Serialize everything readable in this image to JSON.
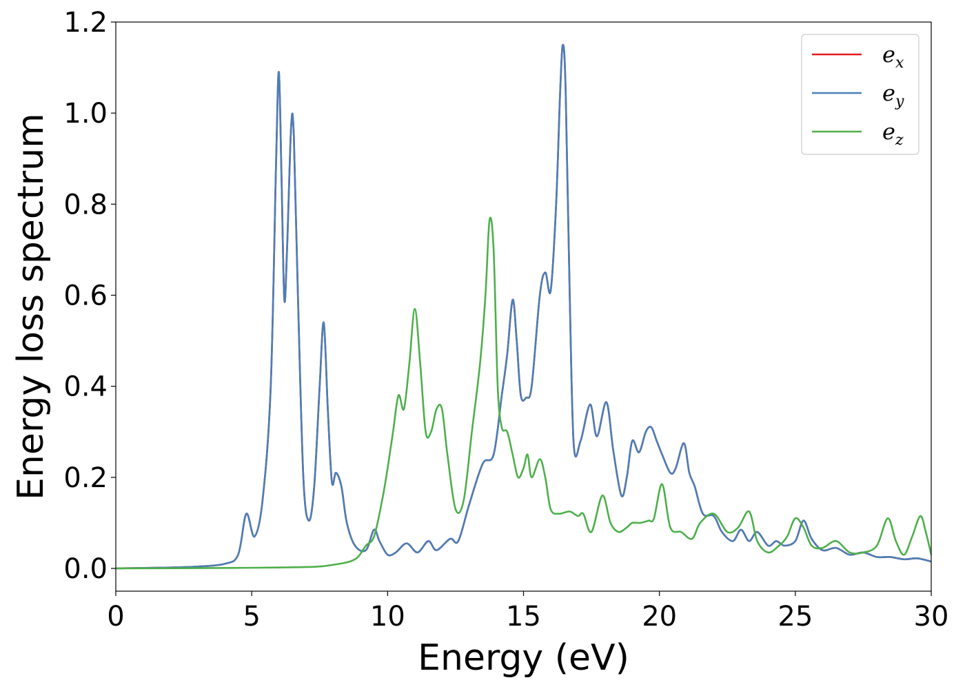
{
  "chart_data": {
    "type": "line",
    "title": "",
    "xlabel": "Energy (eV)",
    "ylabel": "Energy loss spectrum",
    "xlim": [
      0,
      30
    ],
    "ylim": [
      -0.05,
      1.2
    ],
    "x_ticks": [
      0,
      5,
      10,
      15,
      20,
      25,
      30
    ],
    "x_tick_labels": [
      "0",
      "5",
      "10",
      "15",
      "20",
      "25",
      "30"
    ],
    "y_ticks": [
      0.0,
      0.2,
      0.4,
      0.6,
      0.8,
      1.0,
      1.2
    ],
    "y_tick_labels": [
      "0.0",
      "0.2",
      "0.4",
      "0.6",
      "0.8",
      "1.0",
      "1.2"
    ],
    "grid": false,
    "legend_position": "top-right",
    "series": [
      {
        "name": "e",
        "subscript": "x",
        "color": "#e41a1c",
        "x": [
          0,
          2,
          3,
          4,
          4.5,
          4.8,
          5.1,
          5.4,
          5.7,
          5.9,
          6.0,
          6.1,
          6.2,
          6.3,
          6.45,
          6.55,
          6.7,
          6.9,
          7.1,
          7.3,
          7.5,
          7.65,
          7.8,
          7.95,
          8.1,
          8.3,
          8.5,
          8.8,
          9.2,
          9.5,
          9.7,
          10.0,
          10.3,
          10.7,
          11.1,
          11.5,
          11.8,
          12.3,
          12.6,
          13.0,
          13.5,
          13.9,
          14.2,
          14.4,
          14.6,
          14.75,
          14.9,
          15.1,
          15.3,
          15.6,
          15.8,
          16.0,
          16.2,
          16.35,
          16.45,
          16.55,
          16.7,
          16.85,
          17.1,
          17.45,
          17.7,
          18.05,
          18.3,
          18.6,
          18.8,
          19.0,
          19.25,
          19.5,
          19.7,
          19.9,
          20.1,
          20.4,
          20.6,
          20.9,
          21.1,
          21.3,
          21.6,
          22.0,
          22.3,
          22.7,
          23.0,
          23.3,
          23.6,
          24.0,
          24.3,
          24.6,
          25.0,
          25.3,
          25.6,
          26.0,
          26.5,
          27.0,
          27.5,
          28.0,
          28.5,
          29.0,
          29.5,
          30.0
        ],
        "y": [
          0.0,
          0.002,
          0.004,
          0.01,
          0.03,
          0.12,
          0.07,
          0.15,
          0.4,
          0.9,
          1.09,
          0.85,
          0.59,
          0.7,
          0.97,
          0.95,
          0.6,
          0.2,
          0.105,
          0.18,
          0.4,
          0.54,
          0.35,
          0.19,
          0.21,
          0.18,
          0.1,
          0.05,
          0.04,
          0.085,
          0.06,
          0.03,
          0.035,
          0.055,
          0.035,
          0.06,
          0.04,
          0.065,
          0.06,
          0.14,
          0.23,
          0.25,
          0.38,
          0.47,
          0.59,
          0.5,
          0.38,
          0.375,
          0.4,
          0.6,
          0.65,
          0.61,
          0.8,
          1.05,
          1.15,
          1.05,
          0.6,
          0.27,
          0.28,
          0.36,
          0.29,
          0.365,
          0.26,
          0.16,
          0.2,
          0.28,
          0.255,
          0.3,
          0.31,
          0.28,
          0.25,
          0.21,
          0.22,
          0.275,
          0.21,
          0.18,
          0.12,
          0.115,
          0.08,
          0.06,
          0.085,
          0.06,
          0.08,
          0.05,
          0.06,
          0.05,
          0.06,
          0.105,
          0.065,
          0.04,
          0.045,
          0.03,
          0.035,
          0.025,
          0.025,
          0.02,
          0.022,
          0.015
        ]
      },
      {
        "name": "e",
        "subscript": "y",
        "color": "#4a7fb8",
        "x": [
          0,
          2,
          3,
          4,
          4.5,
          4.8,
          5.1,
          5.4,
          5.7,
          5.9,
          6.0,
          6.1,
          6.2,
          6.3,
          6.45,
          6.55,
          6.7,
          6.9,
          7.1,
          7.3,
          7.5,
          7.65,
          7.8,
          7.95,
          8.1,
          8.3,
          8.5,
          8.8,
          9.2,
          9.5,
          9.7,
          10.0,
          10.3,
          10.7,
          11.1,
          11.5,
          11.8,
          12.3,
          12.6,
          13.0,
          13.5,
          13.9,
          14.2,
          14.4,
          14.6,
          14.75,
          14.9,
          15.1,
          15.3,
          15.6,
          15.8,
          16.0,
          16.2,
          16.35,
          16.45,
          16.55,
          16.7,
          16.85,
          17.1,
          17.45,
          17.7,
          18.05,
          18.3,
          18.6,
          18.8,
          19.0,
          19.25,
          19.5,
          19.7,
          19.9,
          20.1,
          20.4,
          20.6,
          20.9,
          21.1,
          21.3,
          21.6,
          22.0,
          22.3,
          22.7,
          23.0,
          23.3,
          23.6,
          24.0,
          24.3,
          24.6,
          25.0,
          25.3,
          25.6,
          26.0,
          26.5,
          27.0,
          27.5,
          28.0,
          28.5,
          29.0,
          29.5,
          30.0
        ],
        "y": [
          0.0,
          0.002,
          0.004,
          0.01,
          0.03,
          0.12,
          0.07,
          0.15,
          0.4,
          0.9,
          1.09,
          0.85,
          0.59,
          0.7,
          0.97,
          0.95,
          0.6,
          0.2,
          0.105,
          0.18,
          0.4,
          0.54,
          0.35,
          0.19,
          0.21,
          0.18,
          0.1,
          0.05,
          0.04,
          0.085,
          0.06,
          0.03,
          0.035,
          0.055,
          0.035,
          0.06,
          0.04,
          0.065,
          0.06,
          0.14,
          0.23,
          0.25,
          0.38,
          0.47,
          0.59,
          0.5,
          0.38,
          0.375,
          0.4,
          0.6,
          0.65,
          0.61,
          0.8,
          1.05,
          1.15,
          1.05,
          0.6,
          0.27,
          0.28,
          0.36,
          0.29,
          0.365,
          0.26,
          0.16,
          0.2,
          0.28,
          0.255,
          0.3,
          0.31,
          0.28,
          0.25,
          0.21,
          0.22,
          0.275,
          0.21,
          0.18,
          0.12,
          0.115,
          0.08,
          0.06,
          0.085,
          0.06,
          0.08,
          0.05,
          0.06,
          0.05,
          0.06,
          0.105,
          0.065,
          0.04,
          0.045,
          0.03,
          0.035,
          0.025,
          0.025,
          0.02,
          0.022,
          0.015
        ]
      },
      {
        "name": "e",
        "subscript": "z",
        "color": "#4daf4a",
        "x": [
          0,
          4,
          7,
          8,
          8.8,
          9.2,
          9.5,
          9.8,
          10.0,
          10.2,
          10.4,
          10.6,
          10.8,
          11.0,
          11.2,
          11.4,
          11.6,
          11.8,
          12.0,
          12.2,
          12.5,
          12.8,
          13.1,
          13.4,
          13.6,
          13.75,
          13.9,
          14.05,
          14.2,
          14.4,
          14.6,
          14.8,
          15.0,
          15.15,
          15.3,
          15.6,
          15.8,
          16.0,
          16.3,
          16.7,
          17.0,
          17.2,
          17.5,
          17.9,
          18.2,
          18.5,
          18.8,
          19.0,
          19.3,
          19.6,
          19.8,
          20.1,
          20.4,
          20.8,
          21.2,
          21.5,
          22.0,
          22.5,
          22.9,
          23.3,
          23.6,
          24.0,
          24.4,
          24.7,
          25.0,
          25.3,
          25.6,
          26.0,
          26.5,
          27.0,
          27.5,
          28.0,
          28.4,
          28.7,
          29.0,
          29.3,
          29.6,
          29.8,
          30.0
        ],
        "y": [
          0.0,
          0.001,
          0.003,
          0.008,
          0.02,
          0.05,
          0.07,
          0.15,
          0.22,
          0.3,
          0.38,
          0.35,
          0.45,
          0.57,
          0.45,
          0.3,
          0.3,
          0.35,
          0.35,
          0.25,
          0.13,
          0.15,
          0.3,
          0.45,
          0.6,
          0.765,
          0.7,
          0.4,
          0.31,
          0.3,
          0.25,
          0.2,
          0.22,
          0.25,
          0.2,
          0.24,
          0.2,
          0.13,
          0.12,
          0.125,
          0.115,
          0.12,
          0.08,
          0.16,
          0.1,
          0.08,
          0.09,
          0.1,
          0.1,
          0.105,
          0.11,
          0.185,
          0.09,
          0.08,
          0.065,
          0.1,
          0.12,
          0.08,
          0.09,
          0.125,
          0.06,
          0.035,
          0.05,
          0.07,
          0.11,
          0.09,
          0.05,
          0.045,
          0.06,
          0.035,
          0.035,
          0.05,
          0.11,
          0.06,
          0.03,
          0.07,
          0.115,
          0.08,
          0.03
        ]
      }
    ]
  }
}
